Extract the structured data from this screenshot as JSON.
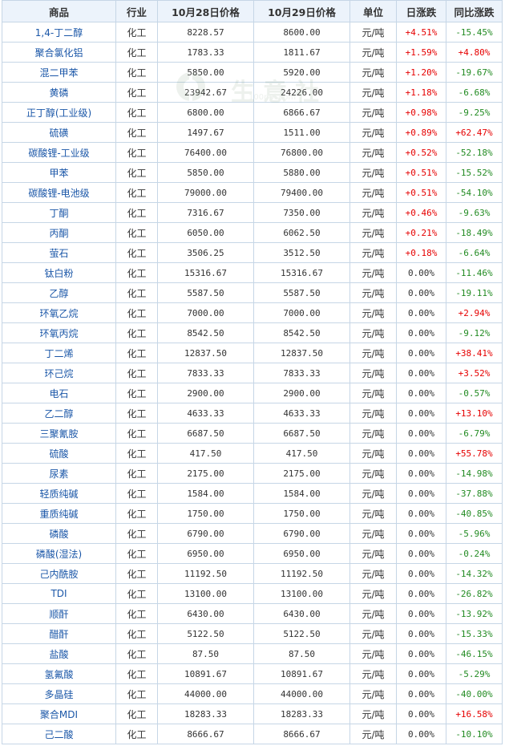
{
  "table": {
    "headers": [
      "商品",
      "行业",
      "10月28日价格",
      "10月29日价格",
      "单位",
      "日涨跌",
      "同比涨跌"
    ],
    "rows": [
      {
        "name": "1,4-丁二醇",
        "industry": "化工",
        "p1": "8228.57",
        "p2": "8600.00",
        "unit": "元/吨",
        "day": "+4.51%",
        "yoy": "-15.45%"
      },
      {
        "name": "聚合氯化铝",
        "industry": "化工",
        "p1": "1783.33",
        "p2": "1811.67",
        "unit": "元/吨",
        "day": "+1.59%",
        "yoy": "+4.80%"
      },
      {
        "name": "混二甲苯",
        "industry": "化工",
        "p1": "5850.00",
        "p2": "5920.00",
        "unit": "元/吨",
        "day": "+1.20%",
        "yoy": "-19.67%"
      },
      {
        "name": "黄磷",
        "industry": "化工",
        "p1": "23942.67",
        "p2": "24226.00",
        "unit": "元/吨",
        "day": "+1.18%",
        "yoy": "-6.68%"
      },
      {
        "name": "正丁醇(工业级)",
        "industry": "化工",
        "p1": "6800.00",
        "p2": "6866.67",
        "unit": "元/吨",
        "day": "+0.98%",
        "yoy": "-9.25%"
      },
      {
        "name": "硫磺",
        "industry": "化工",
        "p1": "1497.67",
        "p2": "1511.00",
        "unit": "元/吨",
        "day": "+0.89%",
        "yoy": "+62.47%"
      },
      {
        "name": "碳酸锂-工业级",
        "industry": "化工",
        "p1": "76400.00",
        "p2": "76800.00",
        "unit": "元/吨",
        "day": "+0.52%",
        "yoy": "-52.18%"
      },
      {
        "name": "甲苯",
        "industry": "化工",
        "p1": "5850.00",
        "p2": "5880.00",
        "unit": "元/吨",
        "day": "+0.51%",
        "yoy": "-15.52%"
      },
      {
        "name": "碳酸锂-电池级",
        "industry": "化工",
        "p1": "79000.00",
        "p2": "79400.00",
        "unit": "元/吨",
        "day": "+0.51%",
        "yoy": "-54.10%"
      },
      {
        "name": "丁酮",
        "industry": "化工",
        "p1": "7316.67",
        "p2": "7350.00",
        "unit": "元/吨",
        "day": "+0.46%",
        "yoy": "-9.63%"
      },
      {
        "name": "丙酮",
        "industry": "化工",
        "p1": "6050.00",
        "p2": "6062.50",
        "unit": "元/吨",
        "day": "+0.21%",
        "yoy": "-18.49%"
      },
      {
        "name": "萤石",
        "industry": "化工",
        "p1": "3506.25",
        "p2": "3512.50",
        "unit": "元/吨",
        "day": "+0.18%",
        "yoy": "-6.64%"
      },
      {
        "name": "钛白粉",
        "industry": "化工",
        "p1": "15316.67",
        "p2": "15316.67",
        "unit": "元/吨",
        "day": "0.00%",
        "yoy": "-11.46%"
      },
      {
        "name": "乙醇",
        "industry": "化工",
        "p1": "5587.50",
        "p2": "5587.50",
        "unit": "元/吨",
        "day": "0.00%",
        "yoy": "-19.11%"
      },
      {
        "name": "环氧乙烷",
        "industry": "化工",
        "p1": "7000.00",
        "p2": "7000.00",
        "unit": "元/吨",
        "day": "0.00%",
        "yoy": "+2.94%"
      },
      {
        "name": "环氧丙烷",
        "industry": "化工",
        "p1": "8542.50",
        "p2": "8542.50",
        "unit": "元/吨",
        "day": "0.00%",
        "yoy": "-9.12%"
      },
      {
        "name": "丁二烯",
        "industry": "化工",
        "p1": "12837.50",
        "p2": "12837.50",
        "unit": "元/吨",
        "day": "0.00%",
        "yoy": "+38.41%"
      },
      {
        "name": "环己烷",
        "industry": "化工",
        "p1": "7833.33",
        "p2": "7833.33",
        "unit": "元/吨",
        "day": "0.00%",
        "yoy": "+3.52%"
      },
      {
        "name": "电石",
        "industry": "化工",
        "p1": "2900.00",
        "p2": "2900.00",
        "unit": "元/吨",
        "day": "0.00%",
        "yoy": "-0.57%"
      },
      {
        "name": "乙二醇",
        "industry": "化工",
        "p1": "4633.33",
        "p2": "4633.33",
        "unit": "元/吨",
        "day": "0.00%",
        "yoy": "+13.10%"
      },
      {
        "name": "三聚氰胺",
        "industry": "化工",
        "p1": "6687.50",
        "p2": "6687.50",
        "unit": "元/吨",
        "day": "0.00%",
        "yoy": "-6.79%"
      },
      {
        "name": "硫酸",
        "industry": "化工",
        "p1": "417.50",
        "p2": "417.50",
        "unit": "元/吨",
        "day": "0.00%",
        "yoy": "+55.78%"
      },
      {
        "name": "尿素",
        "industry": "化工",
        "p1": "2175.00",
        "p2": "2175.00",
        "unit": "元/吨",
        "day": "0.00%",
        "yoy": "-14.98%"
      },
      {
        "name": "轻质纯碱",
        "industry": "化工",
        "p1": "1584.00",
        "p2": "1584.00",
        "unit": "元/吨",
        "day": "0.00%",
        "yoy": "-37.88%"
      },
      {
        "name": "重质纯碱",
        "industry": "化工",
        "p1": "1750.00",
        "p2": "1750.00",
        "unit": "元/吨",
        "day": "0.00%",
        "yoy": "-40.85%"
      },
      {
        "name": "磷酸",
        "industry": "化工",
        "p1": "6790.00",
        "p2": "6790.00",
        "unit": "元/吨",
        "day": "0.00%",
        "yoy": "-5.96%"
      },
      {
        "name": "磷酸(湿法)",
        "industry": "化工",
        "p1": "6950.00",
        "p2": "6950.00",
        "unit": "元/吨",
        "day": "0.00%",
        "yoy": "-0.24%"
      },
      {
        "name": "己内酰胺",
        "industry": "化工",
        "p1": "11192.50",
        "p2": "11192.50",
        "unit": "元/吨",
        "day": "0.00%",
        "yoy": "-14.32%"
      },
      {
        "name": "TDI",
        "industry": "化工",
        "p1": "13100.00",
        "p2": "13100.00",
        "unit": "元/吨",
        "day": "0.00%",
        "yoy": "-26.82%"
      },
      {
        "name": "顺酐",
        "industry": "化工",
        "p1": "6430.00",
        "p2": "6430.00",
        "unit": "元/吨",
        "day": "0.00%",
        "yoy": "-13.92%"
      },
      {
        "name": "醋酐",
        "industry": "化工",
        "p1": "5122.50",
        "p2": "5122.50",
        "unit": "元/吨",
        "day": "0.00%",
        "yoy": "-15.33%"
      },
      {
        "name": "盐酸",
        "industry": "化工",
        "p1": "87.50",
        "p2": "87.50",
        "unit": "元/吨",
        "day": "0.00%",
        "yoy": "-46.15%"
      },
      {
        "name": "氢氟酸",
        "industry": "化工",
        "p1": "10891.67",
        "p2": "10891.67",
        "unit": "元/吨",
        "day": "0.00%",
        "yoy": "-5.29%"
      },
      {
        "name": "多晶硅",
        "industry": "化工",
        "p1": "44000.00",
        "p2": "44000.00",
        "unit": "元/吨",
        "day": "0.00%",
        "yoy": "-40.00%"
      },
      {
        "name": "聚合MDI",
        "industry": "化工",
        "p1": "18283.33",
        "p2": "18283.33",
        "unit": "元/吨",
        "day": "0.00%",
        "yoy": "+16.58%"
      },
      {
        "name": "己二酸",
        "industry": "化工",
        "p1": "8666.67",
        "p2": "8666.67",
        "unit": "元/吨",
        "day": "0.00%",
        "yoy": "-10.10%"
      }
    ]
  },
  "watermark": {
    "text": "生意社",
    "url": "100ppi.com",
    "color": "#7a9a7a"
  },
  "colors": {
    "up": "#e60000",
    "down": "#228b22",
    "name_link": "#1b57a8",
    "header_bg": "#ecf3fb",
    "border": "#c6d6e6"
  }
}
